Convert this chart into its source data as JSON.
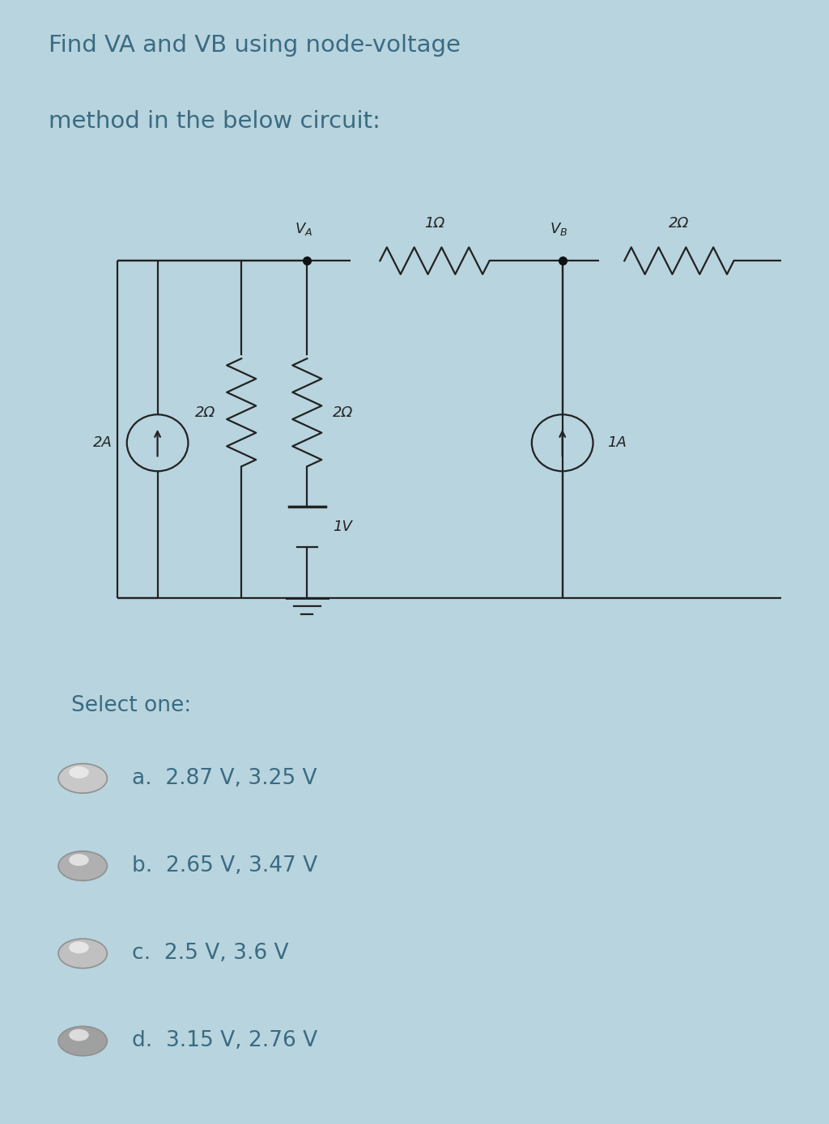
{
  "title_line1": "Find VA and VB using node-voltage",
  "title_line2": "method in the below circuit:",
  "title_fontsize": 21,
  "title_color": "#3a6b82",
  "bg_color_outer": "#b8d4de",
  "bg_color_circuit": "#f5f5f5",
  "bg_color_lower": "#b8d4de",
  "select_text": "Select one:",
  "options": [
    "a.  2.87 V, 3.25 V",
    "b.  2.65 V, 3.47 V",
    "c.  2.5 V, 3.6 V",
    "d.  3.15 V, 2.76 V"
  ],
  "option_fontsize": 19,
  "select_fontsize": 19,
  "text_color": "#3a6b82",
  "circuit_line_color": "#222222",
  "label_color": "#222222",
  "circuit_bg": "#f0f0f0"
}
